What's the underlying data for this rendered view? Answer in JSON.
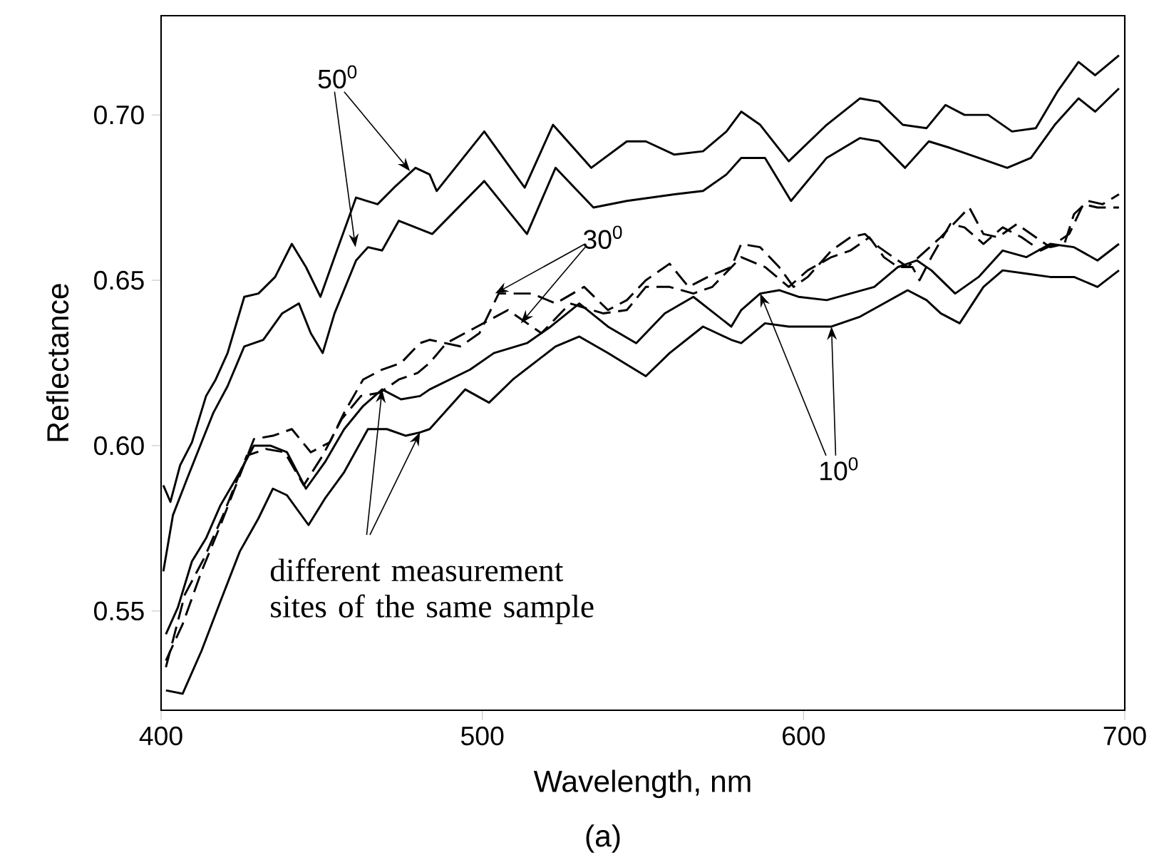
{
  "chart_data": {
    "type": "line",
    "xlabel": "Wavelength, nm",
    "ylabel": "Reflectance",
    "xlim": [
      400,
      700
    ],
    "ylim": [
      0.52,
      0.73
    ],
    "xticks": [
      400,
      500,
      600,
      700
    ],
    "yticks": [
      {
        "value": 0.55,
        "label": "0.55"
      },
      {
        "value": 0.6,
        "label": "0.60"
      },
      {
        "value": 0.65,
        "label": "0.65"
      },
      {
        "value": 0.7,
        "label": "0.70"
      }
    ],
    "annotations": [
      {
        "text": "50$^{0}$",
        "x": 477.5,
        "y": 0.683
      },
      {
        "text": "30$^{0}$",
        "x": 504,
        "y": 0.646
      },
      {
        "text": "10$^{0}$",
        "x": 586.5,
        "y": 0.646
      },
      {
        "text": "different measurement sites of the same sample",
        "x": 468.8,
        "y": 0.617
      },
      "(a)"
    ],
    "series": [
      {
        "color": "#000000",
        "line_style": "solid",
        "x": [
          400.7,
          402.9,
          405.9,
          409.6,
          414,
          417,
          420.7,
          425.9,
          430.3,
          435.5,
          440.7,
          445.1,
          449.6,
          454,
          460.7,
          467.4,
          472.5,
          479.2,
          483.6,
          485.8,
          500.6,
          513.2,
          522,
          533.9,
          545,
          550.9,
          559.8,
          568.7,
          576,
          580.6,
          586.5,
          595.4,
          607.2,
          617.6,
          623.5,
          630.9,
          638.3,
          644.2,
          650.1,
          657.5,
          664.9,
          672.3,
          679,
          685.6,
          690.8,
          698.2
        ],
        "values": [
          0.588,
          0.583,
          0.594,
          0.601,
          0.615,
          0.62,
          0.628,
          0.645,
          0.646,
          0.651,
          0.661,
          0.654,
          0.645,
          0.657,
          0.675,
          0.673,
          0.678,
          0.684,
          0.682,
          0.677,
          0.695,
          0.678,
          0.697,
          0.684,
          0.692,
          0.692,
          0.688,
          0.689,
          0.695,
          0.701,
          0.697,
          0.686,
          0.697,
          0.705,
          0.704,
          0.697,
          0.696,
          0.703,
          0.7,
          0.7,
          0.695,
          0.696,
          0.707,
          0.716,
          0.712,
          0.718
        ]
      },
      {
        "color": "#000000",
        "line_style": "solid",
        "x": [
          400.7,
          403.7,
          408.1,
          412.6,
          416.3,
          420.7,
          425.9,
          431.8,
          437.7,
          442.9,
          446.6,
          450.3,
          454,
          460.7,
          464.4,
          468.8,
          474,
          484.4,
          500.6,
          513.9,
          522.8,
          534.6,
          545,
          559.8,
          568.7,
          576,
          580.6,
          588,
          596.1,
          607.2,
          617.6,
          623.5,
          631.6,
          639,
          645.7,
          654.5,
          663.4,
          670.8,
          678.2,
          685.6,
          690.8,
          698.2
        ],
        "values": [
          0.562,
          0.579,
          0.59,
          0.601,
          0.61,
          0.618,
          0.63,
          0.632,
          0.64,
          0.643,
          0.634,
          0.628,
          0.64,
          0.656,
          0.66,
          0.659,
          0.668,
          0.664,
          0.68,
          0.664,
          0.684,
          0.672,
          0.674,
          0.676,
          0.677,
          0.682,
          0.687,
          0.687,
          0.674,
          0.687,
          0.693,
          0.692,
          0.684,
          0.692,
          0.69,
          0.687,
          0.684,
          0.687,
          0.697,
          0.705,
          0.701,
          0.708
        ]
      },
      {
        "color": "#000000",
        "line_style": "dashed",
        "x": [
          401.5,
          406.7,
          412.6,
          418.5,
          424.5,
          428.9,
          434.8,
          440.7,
          446.6,
          452.5,
          457,
          462.9,
          468.8,
          474.7,
          480.6,
          483.6,
          493.2,
          499.1,
          505.1,
          515.4,
          522.8,
          531.7,
          539.1,
          545,
          550.9,
          558.3,
          564.2,
          570.2,
          577.5,
          580.6,
          586.5,
          592.4,
          596.9,
          601.3,
          608.7,
          614.6,
          619.1,
          623.5,
          627.9,
          632.4,
          642.7,
          648.6,
          651.6,
          656,
          660.5,
          666.4,
          672.3,
          676.8,
          681.2,
          684.2,
          688.6,
          693.1,
          698.2
        ],
        "values": [
          0.535,
          0.546,
          0.562,
          0.576,
          0.591,
          0.602,
          0.603,
          0.605,
          0.598,
          0.601,
          0.61,
          0.62,
          0.623,
          0.625,
          0.631,
          0.632,
          0.63,
          0.634,
          0.646,
          0.646,
          0.643,
          0.648,
          0.641,
          0.644,
          0.65,
          0.655,
          0.648,
          0.651,
          0.654,
          0.661,
          0.66,
          0.654,
          0.648,
          0.651,
          0.659,
          0.663,
          0.664,
          0.66,
          0.657,
          0.654,
          0.663,
          0.669,
          0.672,
          0.664,
          0.663,
          0.667,
          0.663,
          0.66,
          0.661,
          0.67,
          0.674,
          0.673,
          0.676
        ]
      },
      {
        "color": "#000000",
        "line_style": "dashed",
        "x": [
          401.5,
          407.4,
          413.4,
          419.3,
          426.7,
          432.6,
          438.5,
          444.4,
          450.3,
          456.2,
          462.2,
          468.1,
          474,
          479.9,
          483.6,
          488.8,
          508,
          518.4,
          527.3,
          537.6,
          545,
          550.9,
          558.3,
          565.7,
          571.6,
          580.6,
          588,
          595.4,
          601.3,
          608.7,
          614.6,
          620.5,
          625,
          629.4,
          633.9,
          636.1,
          639.8,
          645.7,
          650.1,
          656,
          662,
          667.9,
          673.8,
          678.2,
          682.7,
          687.1,
          691.5,
          698.2
        ],
        "values": [
          0.533,
          0.555,
          0.566,
          0.579,
          0.597,
          0.599,
          0.598,
          0.588,
          0.597,
          0.608,
          0.615,
          0.616,
          0.62,
          0.622,
          0.625,
          0.631,
          0.641,
          0.634,
          0.643,
          0.64,
          0.641,
          0.648,
          0.648,
          0.646,
          0.648,
          0.657,
          0.654,
          0.648,
          0.653,
          0.657,
          0.659,
          0.663,
          0.657,
          0.654,
          0.654,
          0.65,
          0.657,
          0.667,
          0.666,
          0.661,
          0.666,
          0.663,
          0.659,
          0.661,
          0.664,
          0.673,
          0.672,
          0.672
        ]
      },
      {
        "color": "#000000",
        "line_style": "solid",
        "x": [
          401.5,
          405.2,
          409.6,
          414,
          418.5,
          424.5,
          428.9,
          434,
          439.2,
          445.1,
          451,
          457,
          462.9,
          468.8,
          474.7,
          480.6,
          483.6,
          496.2,
          503.6,
          513.9,
          521.3,
          530.2,
          539.1,
          547.9,
          556.8,
          565.7,
          577.5,
          580.6,
          586.5,
          592.4,
          598.4,
          607.2,
          614.6,
          622,
          629.4,
          635.3,
          639.8,
          647.2,
          654.5,
          662,
          669.4,
          676.8,
          684.2,
          691.5,
          698.2
        ],
        "values": [
          0.543,
          0.551,
          0.565,
          0.572,
          0.582,
          0.592,
          0.6,
          0.6,
          0.598,
          0.587,
          0.595,
          0.605,
          0.612,
          0.617,
          0.614,
          0.615,
          0.617,
          0.623,
          0.628,
          0.631,
          0.636,
          0.643,
          0.636,
          0.631,
          0.64,
          0.645,
          0.636,
          0.641,
          0.646,
          0.647,
          0.645,
          0.644,
          0.646,
          0.648,
          0.654,
          0.656,
          0.653,
          0.646,
          0.651,
          0.659,
          0.657,
          0.661,
          0.66,
          0.656,
          0.661
        ]
      },
      {
        "color": "#000000",
        "line_style": "solid",
        "x": [
          401.5,
          406.7,
          412.6,
          418.5,
          424.5,
          430.3,
          434.8,
          439.2,
          445.9,
          451,
          457,
          464.4,
          470.3,
          476.2,
          480.6,
          483.6,
          494.7,
          502.1,
          509.5,
          522.8,
          530.2,
          539.1,
          550.9,
          558.3,
          568.7,
          577.5,
          580.6,
          588,
          595.4,
          602.8,
          608.7,
          617.6,
          625,
          632.4,
          638.3,
          642.7,
          648.6,
          656,
          662,
          669.4,
          676.8,
          684.2,
          691.5,
          698.2
        ],
        "values": [
          0.526,
          0.525,
          0.538,
          0.553,
          0.568,
          0.578,
          0.587,
          0.585,
          0.576,
          0.584,
          0.592,
          0.605,
          0.605,
          0.603,
          0.604,
          0.605,
          0.617,
          0.613,
          0.62,
          0.63,
          0.633,
          0.628,
          0.621,
          0.628,
          0.636,
          0.632,
          0.631,
          0.637,
          0.636,
          0.636,
          0.636,
          0.639,
          0.643,
          0.647,
          0.644,
          0.64,
          0.637,
          0.648,
          0.653,
          0.652,
          0.651,
          0.651,
          0.648,
          0.653
        ]
      }
    ]
  }
}
